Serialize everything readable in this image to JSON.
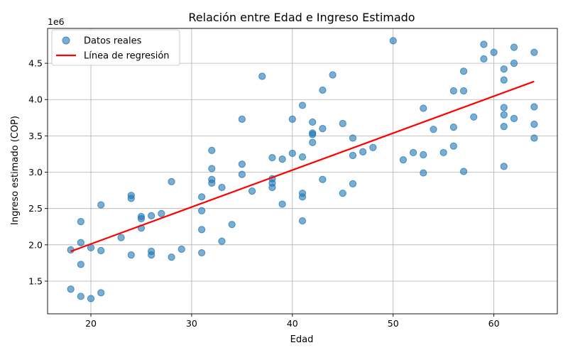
{
  "chart_data": {
    "type": "scatter",
    "title": "Relación entre Edad e Ingreso Estimado",
    "xlabel": "Edad",
    "ylabel": "Ingreso estimado (COP)",
    "y_offset_label": "1e6",
    "xlim": [
      15.7,
      66.3
    ],
    "ylim": [
      1050000,
      4980000
    ],
    "x_ticks": [
      20,
      30,
      40,
      50,
      60
    ],
    "y_ticks": [
      1500000,
      2000000,
      2500000,
      3000000,
      3500000,
      4000000,
      4500000
    ],
    "y_tick_labels": [
      "1.5",
      "2.0",
      "2.5",
      "3.0",
      "3.5",
      "4.0",
      "4.5"
    ],
    "grid": true,
    "legend_position": "upper-left",
    "series": [
      {
        "name": "Datos reales",
        "kind": "scatter",
        "color": "#1f77b4",
        "points": [
          [
            18,
            1930000
          ],
          [
            18,
            1390000
          ],
          [
            19,
            2320000
          ],
          [
            19,
            2030000
          ],
          [
            19,
            1730000
          ],
          [
            19,
            1290000
          ],
          [
            20,
            1960000
          ],
          [
            20,
            1260000
          ],
          [
            21,
            2550000
          ],
          [
            21,
            1920000
          ],
          [
            21,
            1340000
          ],
          [
            23,
            2100000
          ],
          [
            24,
            2680000
          ],
          [
            24,
            2640000
          ],
          [
            24,
            1860000
          ],
          [
            25,
            2390000
          ],
          [
            25,
            2360000
          ],
          [
            25,
            2230000
          ],
          [
            26,
            2400000
          ],
          [
            26,
            1910000
          ],
          [
            26,
            1860000
          ],
          [
            27,
            2430000
          ],
          [
            28,
            2870000
          ],
          [
            28,
            1830000
          ],
          [
            29,
            1940000
          ],
          [
            31,
            2660000
          ],
          [
            31,
            2470000
          ],
          [
            31,
            2210000
          ],
          [
            31,
            1890000
          ],
          [
            32,
            3300000
          ],
          [
            32,
            3050000
          ],
          [
            32,
            2900000
          ],
          [
            32,
            2850000
          ],
          [
            33,
            2790000
          ],
          [
            33,
            2050000
          ],
          [
            34,
            2280000
          ],
          [
            35,
            3730000
          ],
          [
            35,
            3110000
          ],
          [
            35,
            2970000
          ],
          [
            36,
            2740000
          ],
          [
            37,
            4320000
          ],
          [
            38,
            3200000
          ],
          [
            38,
            2910000
          ],
          [
            38,
            2850000
          ],
          [
            38,
            2790000
          ],
          [
            39,
            3180000
          ],
          [
            39,
            2560000
          ],
          [
            40,
            3730000
          ],
          [
            40,
            3260000
          ],
          [
            41,
            3920000
          ],
          [
            41,
            3210000
          ],
          [
            41,
            2710000
          ],
          [
            41,
            2660000
          ],
          [
            41,
            2330000
          ],
          [
            42,
            3690000
          ],
          [
            42,
            3540000
          ],
          [
            42,
            3520000
          ],
          [
            42,
            3410000
          ],
          [
            43,
            4130000
          ],
          [
            43,
            3600000
          ],
          [
            43,
            2900000
          ],
          [
            44,
            4340000
          ],
          [
            45,
            3670000
          ],
          [
            45,
            2710000
          ],
          [
            46,
            3470000
          ],
          [
            46,
            3230000
          ],
          [
            46,
            2840000
          ],
          [
            47,
            3280000
          ],
          [
            48,
            3340000
          ],
          [
            50,
            4810000
          ],
          [
            51,
            3170000
          ],
          [
            52,
            3270000
          ],
          [
            53,
            3880000
          ],
          [
            53,
            3240000
          ],
          [
            53,
            2990000
          ],
          [
            54,
            3590000
          ],
          [
            55,
            3270000
          ],
          [
            56,
            4120000
          ],
          [
            56,
            3620000
          ],
          [
            56,
            3360000
          ],
          [
            57,
            4390000
          ],
          [
            57,
            4120000
          ],
          [
            57,
            3010000
          ],
          [
            58,
            3760000
          ],
          [
            59,
            4760000
          ],
          [
            59,
            4560000
          ],
          [
            60,
            4650000
          ],
          [
            61,
            4420000
          ],
          [
            61,
            4270000
          ],
          [
            61,
            3890000
          ],
          [
            61,
            3790000
          ],
          [
            61,
            3630000
          ],
          [
            61,
            3080000
          ],
          [
            62,
            4720000
          ],
          [
            62,
            4500000
          ],
          [
            62,
            3740000
          ],
          [
            64,
            4650000
          ],
          [
            64,
            3900000
          ],
          [
            64,
            3660000
          ],
          [
            64,
            3470000
          ]
        ]
      },
      {
        "name": "Línea de regresión",
        "kind": "line",
        "color": "#ff0000",
        "points": [
          [
            18,
            1910000
          ],
          [
            64,
            4250000
          ]
        ]
      }
    ]
  }
}
